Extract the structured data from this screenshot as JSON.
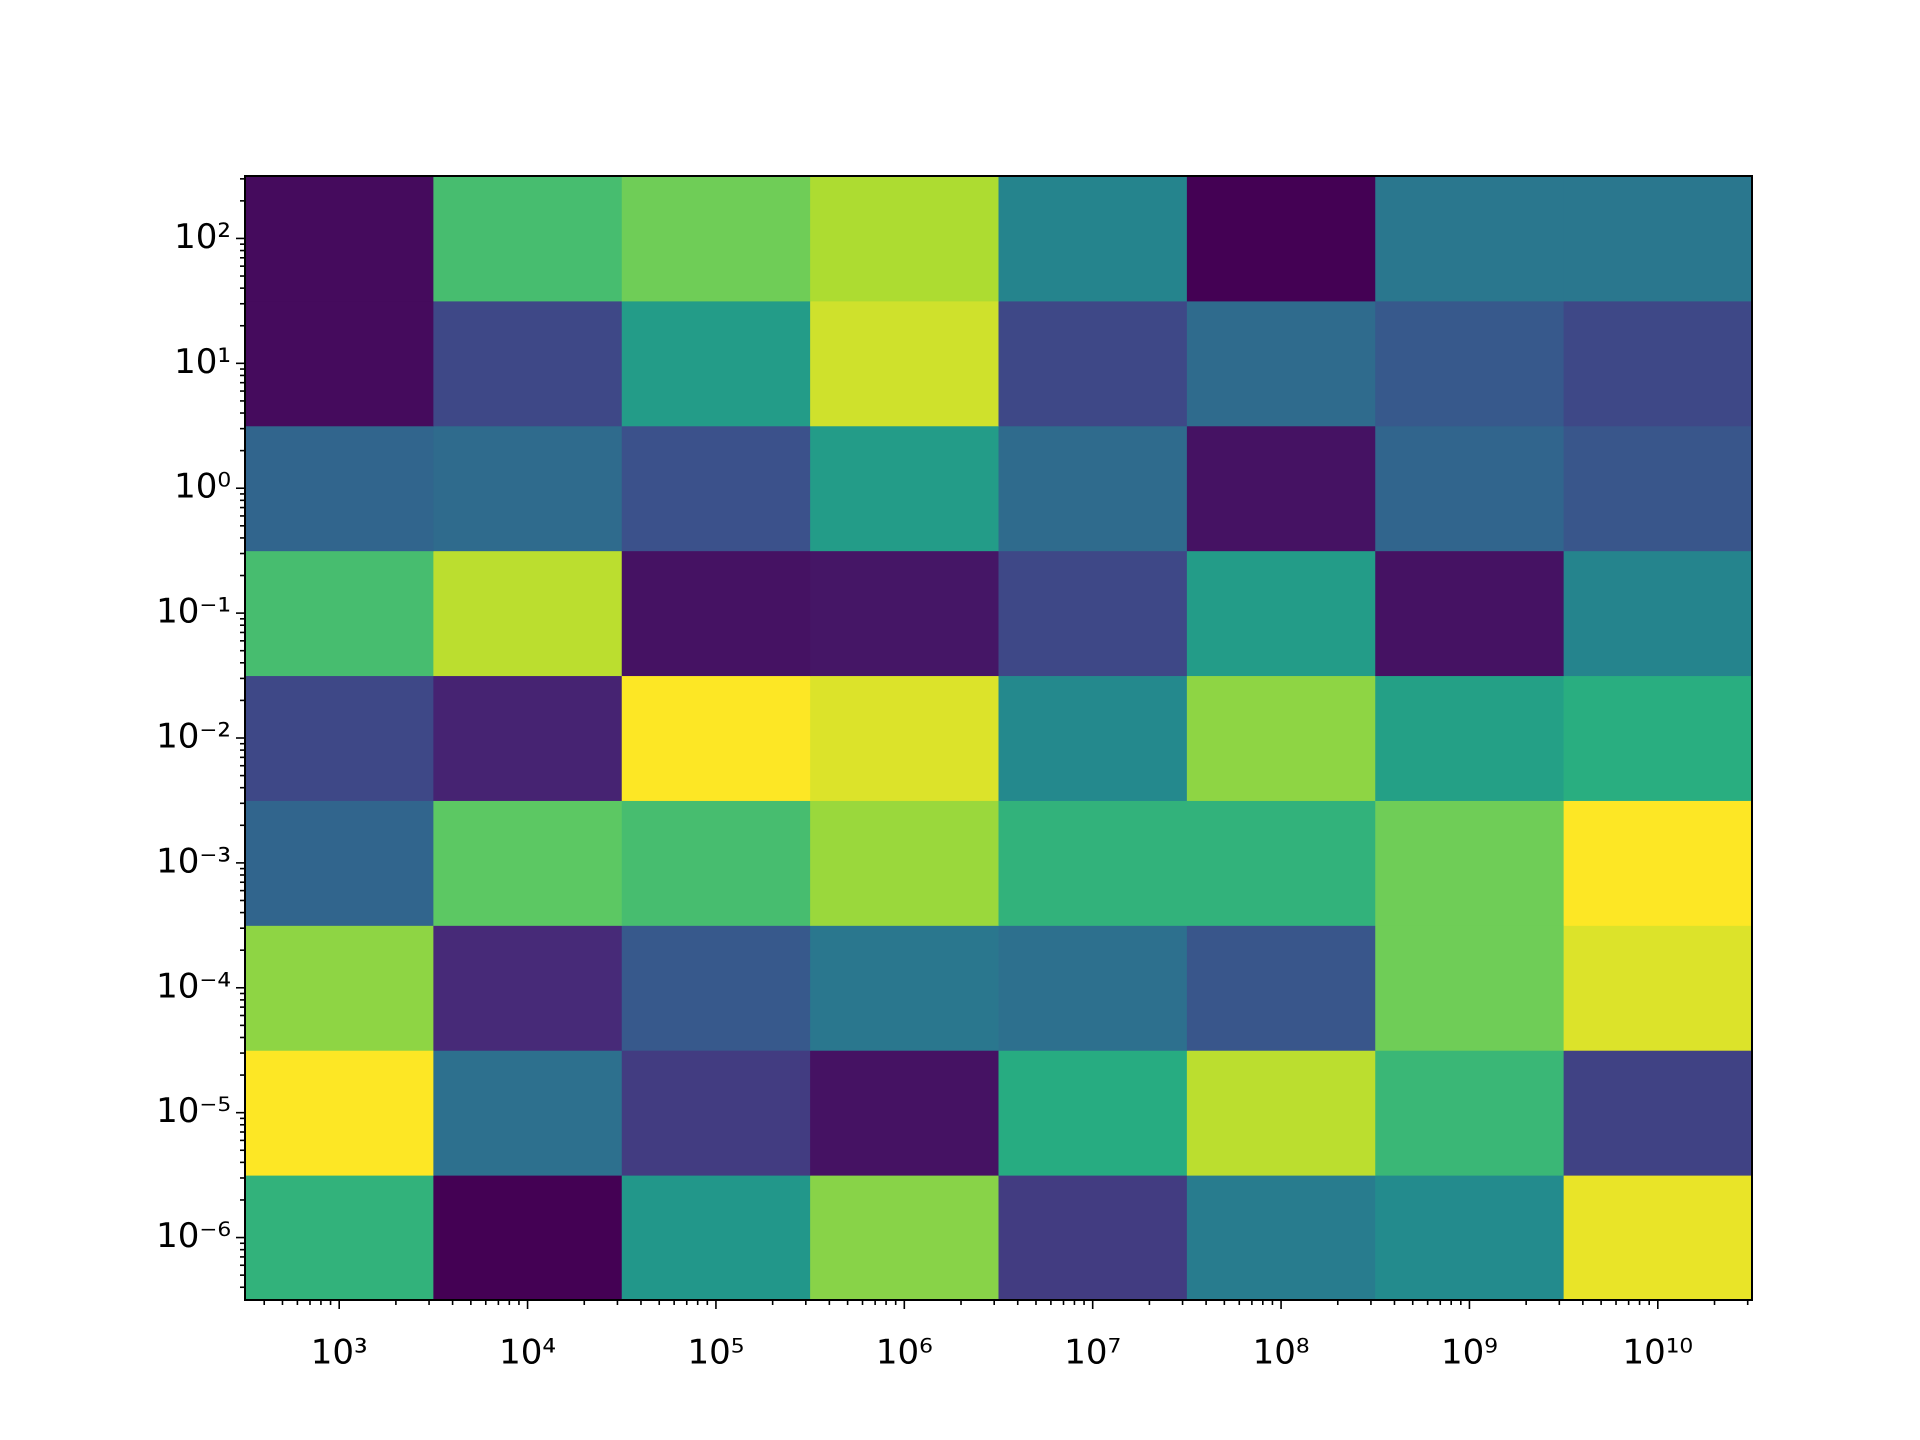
{
  "chart_data": {
    "type": "heatmap",
    "colormap": "viridis",
    "xscale": "log",
    "yscale": "log",
    "x_edges": [
      316.23,
      3162.3,
      31623,
      316230,
      3162300,
      31623000,
      316230000,
      3162300000,
      31623000000
    ],
    "y_edges": [
      3.1623e-07,
      3.1623e-06,
      3.1623e-05,
      0.00031623,
      0.0031623,
      0.031623,
      0.31623,
      3.1623,
      31.623,
      316.23
    ],
    "values": [
      [
        0.65,
        0.0,
        0.53,
        0.82,
        0.18,
        0.42,
        0.48,
        0.97
      ],
      [
        1.0,
        0.37,
        0.18,
        0.05,
        0.62,
        0.9,
        0.67,
        0.2
      ],
      [
        0.83,
        0.12,
        0.28,
        0.4,
        0.37,
        0.27,
        0.78,
        0.95
      ],
      [
        0.33,
        0.75,
        0.7,
        0.85,
        0.65,
        0.65,
        0.78,
        1.0
      ],
      [
        0.22,
        0.1,
        1.0,
        0.95,
        0.47,
        0.83,
        0.57,
        0.63
      ],
      [
        0.7,
        0.9,
        0.05,
        0.06,
        0.22,
        0.55,
        0.05,
        0.45
      ],
      [
        0.33,
        0.35,
        0.25,
        0.55,
        0.35,
        0.05,
        0.33,
        0.27
      ],
      [
        0.03,
        0.22,
        0.55,
        0.93,
        0.22,
        0.35,
        0.28,
        0.22
      ],
      [
        0.03,
        0.7,
        0.78,
        0.88,
        0.45,
        0.0,
        0.4,
        0.4
      ]
    ],
    "vlim": [
      0,
      1
    ],
    "xlim": [
      316.23,
      31623000000
    ],
    "ylim": [
      3.1623e-07,
      316.23
    ],
    "xticks": [
      {
        "value": 1000,
        "label": "10³"
      },
      {
        "value": 10000,
        "label": "10⁴"
      },
      {
        "value": 100000,
        "label": "10⁵"
      },
      {
        "value": 1000000,
        "label": "10⁶"
      },
      {
        "value": 10000000,
        "label": "10⁷"
      },
      {
        "value": 100000000,
        "label": "10⁸"
      },
      {
        "value": 1000000000,
        "label": "10⁹"
      },
      {
        "value": 10000000000,
        "label": "10¹⁰"
      }
    ],
    "yticks": [
      {
        "value": 1e-06,
        "label": "10⁻⁶"
      },
      {
        "value": 1e-05,
        "label": "10⁻⁵"
      },
      {
        "value": 0.0001,
        "label": "10⁻⁴"
      },
      {
        "value": 0.001,
        "label": "10⁻³"
      },
      {
        "value": 0.01,
        "label": "10⁻²"
      },
      {
        "value": 0.1,
        "label": "10⁻¹"
      },
      {
        "value": 1,
        "label": "10⁰"
      },
      {
        "value": 10,
        "label": "10¹"
      },
      {
        "value": 100,
        "label": "10²"
      }
    ]
  }
}
